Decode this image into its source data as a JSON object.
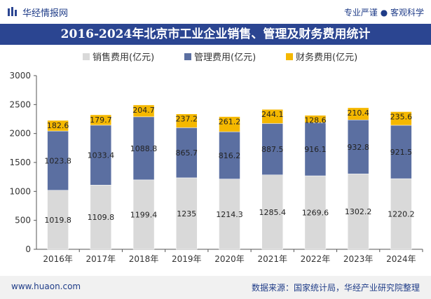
{
  "header": {
    "brand": "华经情报网",
    "tagline": "专业严谨 ● 客观科学"
  },
  "title": "2016-2024年北京市工业企业销售、管理及财务费用统计",
  "footer": {
    "website": "www.huaon.com",
    "source": "数据来源：国家统计局，华经产业研究院整理"
  },
  "colors": {
    "title_bg": "#2b4591",
    "sales": "#d9d9d9",
    "management": "#5b6fa1",
    "finance": "#f5b800"
  },
  "chart_data": {
    "type": "bar",
    "stacked": true,
    "categories": [
      "2016年",
      "2017年",
      "2018年",
      "2019年",
      "2020年",
      "2021年",
      "2022年",
      "2023年",
      "2024年"
    ],
    "series": [
      {
        "name": "销售费用(亿元)",
        "values": [
          1019.8,
          1109.8,
          1199.4,
          1235,
          1214.3,
          1285.4,
          1269.6,
          1302.2,
          1220.2
        ],
        "labels": [
          "1019.8",
          "1109.8",
          "1199.4",
          "1235",
          "1214.3",
          "1285.4",
          "1269.6",
          "1302.2",
          "1220.2"
        ]
      },
      {
        "name": "管理费用(亿元)",
        "values": [
          1023.8,
          1033.4,
          1088.8,
          865.7,
          816.2,
          887.5,
          916.1,
          932.8,
          921.5
        ],
        "labels": [
          "1023.8",
          "1033.4",
          "1088.8",
          "865.7",
          "816.2",
          "887.5",
          "916.1",
          "932.8",
          "921.5"
        ]
      },
      {
        "name": "财务费用(亿元)",
        "values": [
          182.6,
          179.7,
          204.7,
          237.2,
          261.2,
          244.1,
          128.6,
          210.4,
          235.6
        ],
        "labels": [
          "182.6",
          "179.7",
          "204.7",
          "237.2",
          "261.2",
          "244.1",
          "128.6",
          "210.4",
          "235.6"
        ]
      }
    ],
    "ylim": [
      0,
      3000
    ],
    "yticks": [
      "0",
      "500",
      "1000",
      "1500",
      "2000",
      "2500",
      "3000"
    ],
    "legend_position": "top",
    "grid": false
  }
}
